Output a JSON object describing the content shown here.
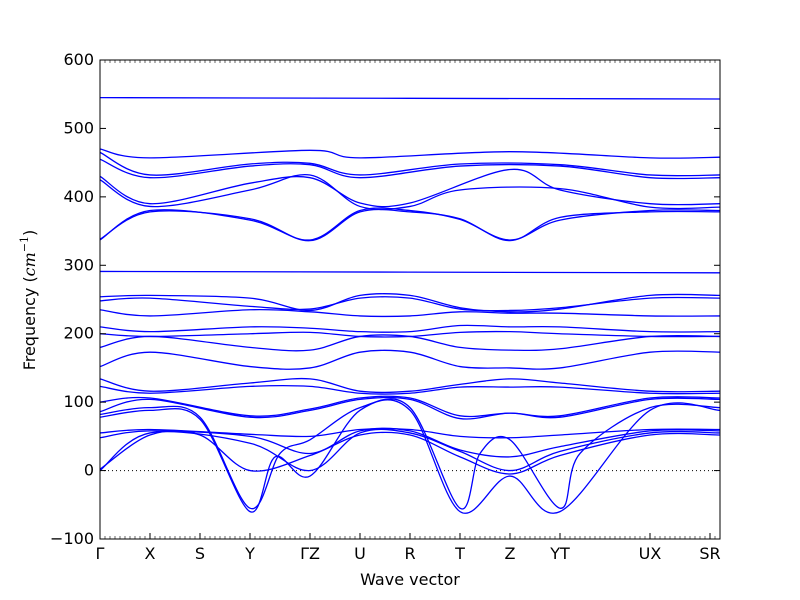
{
  "chart_data": {
    "type": "line",
    "xlabel": "Wave vector",
    "ylabel_text": "Frequency (",
    "ylabel_unit": "cm",
    "ylabel_exp": "−1",
    "ylabel_close": ")",
    "ylim": [
      -100,
      600
    ],
    "yticks": [
      -100,
      0,
      100,
      200,
      300,
      400,
      500,
      600
    ],
    "xticks": [
      {
        "label": "Γ",
        "x": 0
      },
      {
        "label": "X",
        "x": 1
      },
      {
        "label": "S",
        "x": 2
      },
      {
        "label": "Y",
        "x": 3
      },
      {
        "label": "ΓZ",
        "x": 4.2
      },
      {
        "label": "U",
        "x": 5.2
      },
      {
        "label": "R",
        "x": 6.2
      },
      {
        "label": "T",
        "x": 7.2
      },
      {
        "label": "Z",
        "x": 8.2
      },
      {
        "label": "YT",
        "x": 9.2
      },
      {
        "label": "UX",
        "x": 11.0
      },
      {
        "label": "SR",
        "x": 12.2
      }
    ],
    "xlim": [
      0,
      12.4
    ],
    "zero_line": true,
    "series_color": "#0000ff",
    "bands": [
      {
        "points": [
          [
            0,
            545
          ],
          [
            12.4,
            543
          ]
        ]
      },
      {
        "points": [
          [
            0,
            470
          ],
          [
            1,
            457
          ],
          [
            4.2,
            468
          ],
          [
            5.2,
            457
          ],
          [
            8.2,
            466
          ],
          [
            11,
            457
          ],
          [
            12.4,
            458
          ]
        ]
      },
      {
        "points": [
          [
            0,
            465
          ],
          [
            1,
            432
          ],
          [
            3,
            448
          ],
          [
            4.2,
            449
          ],
          [
            5.2,
            432
          ],
          [
            7.2,
            448
          ],
          [
            9.2,
            447
          ],
          [
            11,
            432
          ],
          [
            12.4,
            432
          ]
        ]
      },
      {
        "points": [
          [
            0,
            455
          ],
          [
            1,
            428
          ],
          [
            3,
            445
          ],
          [
            4.2,
            447
          ],
          [
            5.2,
            428
          ],
          [
            7.2,
            445
          ],
          [
            9.2,
            445
          ],
          [
            11,
            428
          ],
          [
            12.4,
            428
          ]
        ]
      },
      {
        "points": [
          [
            0,
            430
          ],
          [
            1,
            390
          ],
          [
            3,
            420
          ],
          [
            4.2,
            428
          ],
          [
            5.2,
            391
          ],
          [
            6.2,
            391
          ],
          [
            8.2,
            440
          ],
          [
            9.2,
            410
          ],
          [
            11,
            390
          ],
          [
            12.4,
            390
          ]
        ]
      },
      {
        "points": [
          [
            0,
            425
          ],
          [
            1,
            386
          ],
          [
            3,
            410
          ],
          [
            4.2,
            432
          ],
          [
            5.2,
            386
          ],
          [
            6.2,
            386
          ],
          [
            7.2,
            410
          ],
          [
            9.2,
            412
          ],
          [
            11,
            385
          ],
          [
            12.4,
            385
          ]
        ]
      },
      {
        "points": [
          [
            0,
            337
          ],
          [
            1,
            380
          ],
          [
            3,
            366
          ],
          [
            4.2,
            337
          ],
          [
            5.2,
            380
          ],
          [
            6.2,
            380
          ],
          [
            7.2,
            367
          ],
          [
            8.2,
            337
          ],
          [
            9.2,
            366
          ],
          [
            11,
            380
          ],
          [
            12.4,
            380
          ]
        ]
      },
      {
        "points": [
          [
            0,
            338
          ],
          [
            1,
            378
          ],
          [
            3,
            368
          ],
          [
            4.2,
            336
          ],
          [
            5.2,
            378
          ],
          [
            6.2,
            378
          ],
          [
            7.2,
            368
          ],
          [
            8.2,
            336
          ],
          [
            9.2,
            370
          ],
          [
            11,
            378
          ],
          [
            12.4,
            378
          ]
        ]
      },
      {
        "points": [
          [
            0,
            291
          ],
          [
            12.4,
            289
          ]
        ]
      },
      {
        "points": [
          [
            0,
            254
          ],
          [
            1,
            256
          ],
          [
            3,
            252
          ],
          [
            4.2,
            234
          ],
          [
            5.2,
            256
          ],
          [
            6.2,
            256
          ],
          [
            7.2,
            238
          ],
          [
            8.2,
            232
          ],
          [
            9.2,
            236
          ],
          [
            11,
            256
          ],
          [
            12.4,
            256
          ]
        ]
      },
      {
        "points": [
          [
            0,
            248
          ],
          [
            1,
            252
          ],
          [
            3,
            240
          ],
          [
            4.2,
            236
          ],
          [
            5.2,
            252
          ],
          [
            6.2,
            252
          ],
          [
            7.2,
            236
          ],
          [
            8.2,
            234
          ],
          [
            9.2,
            238
          ],
          [
            11,
            252
          ],
          [
            12.4,
            252
          ]
        ]
      },
      {
        "points": [
          [
            0,
            235
          ],
          [
            1,
            226
          ],
          [
            3,
            235
          ],
          [
            4.2,
            232
          ],
          [
            5.2,
            226
          ],
          [
            6.2,
            226
          ],
          [
            7.2,
            232
          ],
          [
            8.2,
            230
          ],
          [
            9.2,
            230
          ],
          [
            11,
            226
          ],
          [
            12.4,
            226
          ]
        ]
      },
      {
        "points": [
          [
            0,
            210
          ],
          [
            1,
            203
          ],
          [
            3,
            210
          ],
          [
            4.2,
            208
          ],
          [
            5.2,
            203
          ],
          [
            6.2,
            203
          ],
          [
            7.2,
            212
          ],
          [
            8.2,
            210
          ],
          [
            9.2,
            210
          ],
          [
            11,
            203
          ],
          [
            12.4,
            203
          ]
        ]
      },
      {
        "points": [
          [
            0,
            200
          ],
          [
            1,
            196
          ],
          [
            3,
            200
          ],
          [
            4.2,
            202
          ],
          [
            5.2,
            196
          ],
          [
            6.2,
            196
          ],
          [
            7.2,
            202
          ],
          [
            8.2,
            203
          ],
          [
            9.2,
            200
          ],
          [
            11,
            196
          ],
          [
            12.4,
            196
          ]
        ]
      },
      {
        "points": [
          [
            0,
            180
          ],
          [
            1,
            196
          ],
          [
            3,
            180
          ],
          [
            4.2,
            176
          ],
          [
            5.2,
            196
          ],
          [
            6.2,
            196
          ],
          [
            7.2,
            180
          ],
          [
            8.2,
            176
          ],
          [
            9.2,
            178
          ],
          [
            11,
            196
          ],
          [
            12.4,
            196
          ]
        ]
      },
      {
        "points": [
          [
            0,
            152
          ],
          [
            1,
            173
          ],
          [
            3,
            152
          ],
          [
            4.2,
            150
          ],
          [
            5.2,
            173
          ],
          [
            6.2,
            173
          ],
          [
            7.2,
            152
          ],
          [
            8.2,
            150
          ],
          [
            9.2,
            150
          ],
          [
            11,
            173
          ],
          [
            12.4,
            173
          ]
        ]
      },
      {
        "points": [
          [
            0,
            134
          ],
          [
            1,
            116
          ],
          [
            3,
            128
          ],
          [
            4.2,
            134
          ],
          [
            5.2,
            116
          ],
          [
            6.2,
            116
          ],
          [
            7.2,
            126
          ],
          [
            8.2,
            134
          ],
          [
            9.2,
            128
          ],
          [
            11,
            116
          ],
          [
            12.4,
            116
          ]
        ]
      },
      {
        "points": [
          [
            0,
            123
          ],
          [
            1,
            113
          ],
          [
            3,
            123
          ],
          [
            4.2,
            123
          ],
          [
            5.2,
            113
          ],
          [
            6.2,
            113
          ],
          [
            7.2,
            122
          ],
          [
            8.2,
            122
          ],
          [
            9.2,
            122
          ],
          [
            11,
            113
          ],
          [
            12.4,
            113
          ]
        ]
      },
      {
        "points": [
          [
            0,
            100
          ],
          [
            1,
            106
          ],
          [
            3,
            80
          ],
          [
            4.2,
            90
          ],
          [
            5.2,
            106
          ],
          [
            6.2,
            106
          ],
          [
            7.2,
            80
          ],
          [
            8.2,
            84
          ],
          [
            9.2,
            80
          ],
          [
            11,
            106
          ],
          [
            12.4,
            106
          ]
        ]
      },
      {
        "points": [
          [
            0,
            86
          ],
          [
            1,
            104
          ],
          [
            3,
            78
          ],
          [
            4.2,
            88
          ],
          [
            5.2,
            104
          ],
          [
            6.2,
            104
          ],
          [
            7.2,
            76
          ],
          [
            8.2,
            84
          ],
          [
            9.2,
            78
          ],
          [
            11,
            104
          ],
          [
            12.4,
            104
          ]
        ]
      },
      {
        "points": [
          [
            0,
            82
          ],
          [
            1,
            92
          ],
          [
            2,
            78
          ],
          [
            3,
            -55
          ],
          [
            3.6,
            25
          ],
          [
            4.2,
            45
          ],
          [
            5.2,
            92
          ],
          [
            6.2,
            92
          ],
          [
            7.2,
            -55
          ],
          [
            7.6,
            25
          ],
          [
            8.2,
            45
          ],
          [
            9.2,
            -55
          ],
          [
            9.6,
            25
          ],
          [
            11,
            92
          ],
          [
            12.4,
            92
          ]
        ]
      },
      {
        "points": [
          [
            0,
            78
          ],
          [
            1,
            88
          ],
          [
            2,
            75
          ],
          [
            3,
            -60
          ],
          [
            3.5,
            20
          ],
          [
            4.2,
            -8
          ],
          [
            5.2,
            88
          ],
          [
            6.2,
            88
          ],
          [
            7.2,
            -60
          ],
          [
            8.2,
            -8
          ],
          [
            9.2,
            -60
          ],
          [
            11,
            88
          ],
          [
            12.4,
            88
          ]
        ]
      },
      {
        "points": [
          [
            0,
            55
          ],
          [
            1,
            60
          ],
          [
            3,
            53
          ],
          [
            4.2,
            50
          ],
          [
            5.2,
            60
          ],
          [
            6.2,
            60
          ],
          [
            7.2,
            50
          ],
          [
            8.2,
            48
          ],
          [
            9.2,
            52
          ],
          [
            11,
            60
          ],
          [
            12.4,
            60
          ]
        ]
      },
      {
        "points": [
          [
            0,
            48
          ],
          [
            1,
            58
          ],
          [
            3,
            50
          ],
          [
            4.2,
            25
          ],
          [
            5.2,
            58
          ],
          [
            6.2,
            58
          ],
          [
            7.2,
            30
          ],
          [
            8.2,
            20
          ],
          [
            9.2,
            35
          ],
          [
            11,
            58
          ],
          [
            12.4,
            58
          ]
        ]
      },
      {
        "points": [
          [
            0,
            0
          ],
          [
            1,
            55
          ],
          [
            3,
            40
          ],
          [
            4.2,
            0
          ],
          [
            5.2,
            55
          ],
          [
            6.2,
            55
          ],
          [
            7.2,
            28
          ],
          [
            8.2,
            0
          ],
          [
            9.2,
            28
          ],
          [
            11,
            55
          ],
          [
            12.4,
            55
          ]
        ]
      },
      {
        "points": [
          [
            0,
            2
          ],
          [
            1,
            52
          ],
          [
            2,
            52
          ],
          [
            3,
            0
          ],
          [
            4.2,
            22
          ],
          [
            5.2,
            52
          ],
          [
            6.2,
            52
          ],
          [
            7.2,
            20
          ],
          [
            8.2,
            -5
          ],
          [
            9.2,
            22
          ],
          [
            11,
            52
          ],
          [
            12.4,
            52
          ]
        ]
      }
    ]
  }
}
